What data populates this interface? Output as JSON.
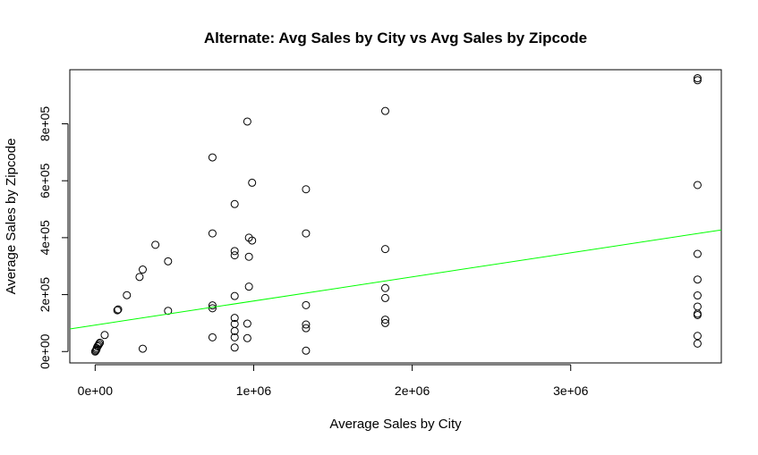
{
  "chart_data": {
    "type": "scatter",
    "title": "Alternate: Avg Sales by City vs Avg Sales by Zipcode",
    "xlabel": "Average Sales by City",
    "ylabel": "Average Sales by Zipcode",
    "xlim": [
      -160000,
      3950000
    ],
    "ylim": [
      -40000,
      990000
    ],
    "x_ticks": [
      {
        "value": 0,
        "label": "0e+00"
      },
      {
        "value": 1000000,
        "label": "1e+06"
      },
      {
        "value": 2000000,
        "label": "2e+06"
      },
      {
        "value": 3000000,
        "label": "3e+06"
      }
    ],
    "y_ticks": [
      {
        "value": 0,
        "label": "0e+00"
      },
      {
        "value": 200000,
        "label": "2e+05"
      },
      {
        "value": 400000,
        "label": "4e+05"
      },
      {
        "value": 600000,
        "label": "6e+05"
      },
      {
        "value": 800000,
        "label": "8e+05"
      }
    ],
    "grid": false,
    "marker": "open-circle",
    "regression_line": {
      "color": "#00ff00",
      "intercept": 93000,
      "slope": 0.0846
    },
    "points": [
      [
        0,
        0
      ],
      [
        4000,
        3000
      ],
      [
        8000,
        7000
      ],
      [
        10000,
        12000
      ],
      [
        15000,
        18000
      ],
      [
        20000,
        22000
      ],
      [
        25000,
        27000
      ],
      [
        30000,
        31000
      ],
      [
        60000,
        58000
      ],
      [
        140000,
        145000
      ],
      [
        145000,
        148000
      ],
      [
        200000,
        198000
      ],
      [
        280000,
        262000
      ],
      [
        300000,
        288000
      ],
      [
        300000,
        10000
      ],
      [
        380000,
        375000
      ],
      [
        460000,
        317000
      ],
      [
        460000,
        143000
      ],
      [
        740000,
        682000
      ],
      [
        740000,
        415000
      ],
      [
        740000,
        162000
      ],
      [
        740000,
        152000
      ],
      [
        740000,
        50000
      ],
      [
        880000,
        518000
      ],
      [
        880000,
        353000
      ],
      [
        880000,
        338000
      ],
      [
        880000,
        195000
      ],
      [
        880000,
        118000
      ],
      [
        880000,
        97000
      ],
      [
        880000,
        72000
      ],
      [
        880000,
        50000
      ],
      [
        880000,
        14000
      ],
      [
        960000,
        808000
      ],
      [
        970000,
        400000
      ],
      [
        970000,
        333000
      ],
      [
        970000,
        228000
      ],
      [
        960000,
        98000
      ],
      [
        960000,
        47000
      ],
      [
        990000,
        593000
      ],
      [
        990000,
        390000
      ],
      [
        1330000,
        570000
      ],
      [
        1330000,
        415000
      ],
      [
        1330000,
        163000
      ],
      [
        1330000,
        95000
      ],
      [
        1330000,
        82000
      ],
      [
        1330000,
        3000
      ],
      [
        1830000,
        845000
      ],
      [
        1830000,
        360000
      ],
      [
        1830000,
        223000
      ],
      [
        1830000,
        188000
      ],
      [
        1830000,
        112000
      ],
      [
        1830000,
        100000
      ],
      [
        3800000,
        960000
      ],
      [
        3800000,
        953000
      ],
      [
        3800000,
        585000
      ],
      [
        3800000,
        343000
      ],
      [
        3800000,
        253000
      ],
      [
        3800000,
        197000
      ],
      [
        3800000,
        158000
      ],
      [
        3800000,
        133000
      ],
      [
        3800000,
        128000
      ],
      [
        3800000,
        55000
      ],
      [
        3800000,
        28000
      ]
    ]
  }
}
